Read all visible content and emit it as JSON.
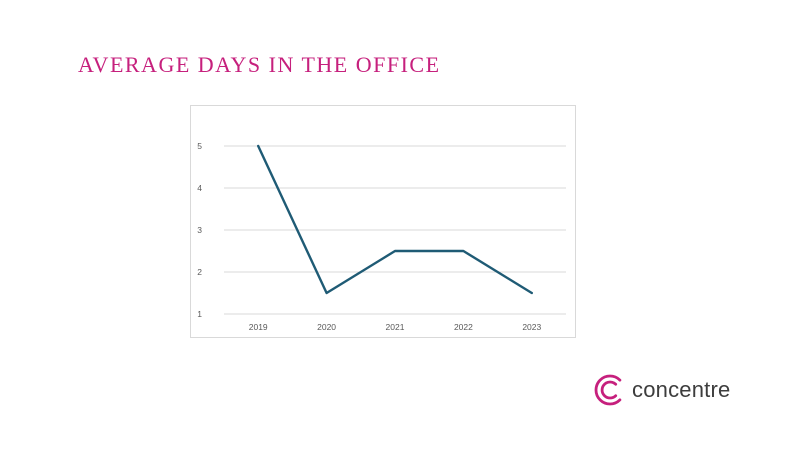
{
  "slide": {
    "title": "AVERAGE DAYS IN THE OFFICE"
  },
  "brand": {
    "name": "concentre",
    "logo_icon": "concentric-c-icon",
    "accent_color": "#c6207d",
    "text_color": "#3d3d3d"
  },
  "chart_data": {
    "type": "line",
    "categories": [
      "2019",
      "2020",
      "2021",
      "2022",
      "2023"
    ],
    "series": [
      {
        "values": [
          5,
          1.5,
          2.5,
          2.5,
          1.5
        ],
        "color": "#1f5b75"
      }
    ],
    "yticks": [
      "1",
      "2",
      "3",
      "4",
      "5"
    ],
    "ylim": [
      1,
      5
    ],
    "grid": true,
    "legend": "none",
    "title": "",
    "xlabel": "",
    "ylabel": ""
  }
}
